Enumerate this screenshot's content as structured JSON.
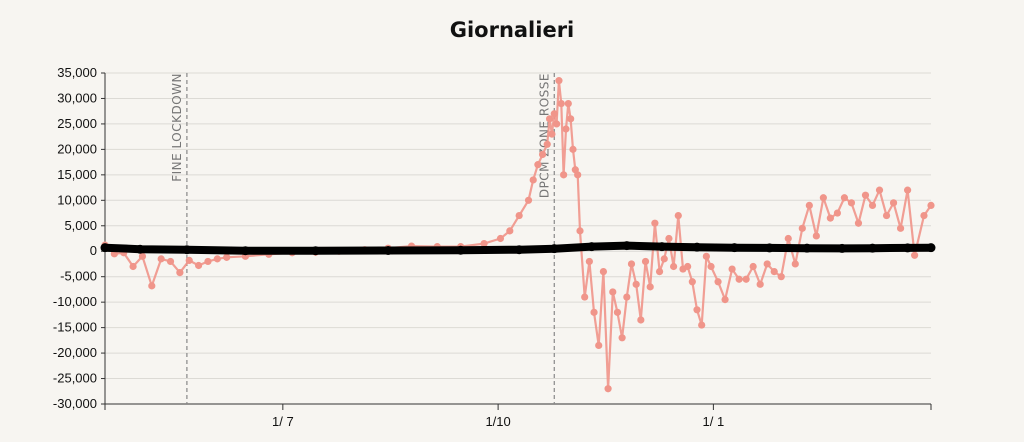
{
  "chart_data": {
    "type": "line",
    "title": "Giornalieri",
    "xlabel": "",
    "ylabel": "",
    "ylim": [
      -30000,
      35000
    ],
    "yticks": [
      35000,
      30000,
      25000,
      20000,
      15000,
      10000,
      5000,
      0,
      -5000,
      -10000,
      -15000,
      -20000,
      -25000,
      -30000
    ],
    "ytick_labels": [
      "35,000",
      "30,000",
      "25,000",
      "20,000",
      "15,000",
      "10,000",
      "5,000",
      "0",
      "-5,000",
      "-10,000",
      "-15,000",
      "-20,000",
      "-25,000",
      "-30,000"
    ],
    "xlim": [
      "2020-04-16",
      "2021-04-04"
    ],
    "xticks": [
      "2020-07-01",
      "2020-10-01",
      "2021-01-01"
    ],
    "xtick_labels": [
      "1/ 7",
      "1/10",
      "1/ 1"
    ],
    "grid": true,
    "annotations": [
      {
        "date": "2020-05-21",
        "label": "FINE LOCKDOWN"
      },
      {
        "date": "2020-10-25",
        "label": "DPCM ZONE ROSSE"
      }
    ],
    "series": [
      {
        "color": "#f0958a",
        "x": [
          "2020-04-16",
          "2020-04-20",
          "2020-04-24",
          "2020-04-28",
          "2020-05-02",
          "2020-05-06",
          "2020-05-10",
          "2020-05-14",
          "2020-05-18",
          "2020-05-22",
          "2020-05-26",
          "2020-05-30",
          "2020-06-03",
          "2020-06-07",
          "2020-06-15",
          "2020-06-25",
          "2020-07-05",
          "2020-07-15",
          "2020-07-25",
          "2020-08-05",
          "2020-08-15",
          "2020-08-25",
          "2020-09-05",
          "2020-09-15",
          "2020-09-25",
          "2020-10-02",
          "2020-10-06",
          "2020-10-10",
          "2020-10-14",
          "2020-10-16",
          "2020-10-18",
          "2020-10-20",
          "2020-10-22",
          "2020-10-23",
          "2020-10-24",
          "2020-10-25",
          "2020-10-26",
          "2020-10-27",
          "2020-10-28",
          "2020-10-29",
          "2020-10-30",
          "2020-10-31",
          "2020-11-01",
          "2020-11-02",
          "2020-11-03",
          "2020-11-04",
          "2020-11-05",
          "2020-11-07",
          "2020-11-09",
          "2020-11-11",
          "2020-11-13",
          "2020-11-15",
          "2020-11-17",
          "2020-11-19",
          "2020-11-21",
          "2020-11-23",
          "2020-11-25",
          "2020-11-27",
          "2020-11-29",
          "2020-12-01",
          "2020-12-03",
          "2020-12-05",
          "2020-12-07",
          "2020-12-09",
          "2020-12-11",
          "2020-12-13",
          "2020-12-15",
          "2020-12-17",
          "2020-12-19",
          "2020-12-21",
          "2020-12-23",
          "2020-12-25",
          "2020-12-27",
          "2020-12-29",
          "2020-12-31",
          "2021-01-03",
          "2021-01-06",
          "2021-01-09",
          "2021-01-12",
          "2021-01-15",
          "2021-01-18",
          "2021-01-21",
          "2021-01-24",
          "2021-01-27",
          "2021-01-30",
          "2021-02-02",
          "2021-02-05",
          "2021-02-08",
          "2021-02-11",
          "2021-02-14",
          "2021-02-17",
          "2021-02-20",
          "2021-02-23",
          "2021-02-26",
          "2021-03-01",
          "2021-03-04",
          "2021-03-07",
          "2021-03-10",
          "2021-03-13",
          "2021-03-16",
          "2021-03-19",
          "2021-03-22",
          "2021-03-25",
          "2021-03-28",
          "2021-04-01",
          "2021-04-04"
        ],
        "values": [
          1200,
          -500,
          -300,
          -3000,
          -1000,
          -6800,
          -1500,
          -2000,
          -4200,
          -1800,
          -2800,
          -2000,
          -1500,
          -1200,
          -1000,
          -600,
          -300,
          -200,
          0,
          300,
          600,
          1000,
          900,
          900,
          1500,
          2500,
          4000,
          7000,
          10000,
          14000,
          17000,
          19000,
          21000,
          26000,
          23000,
          27000,
          25000,
          33500,
          29000,
          15000,
          24000,
          29000,
          26000,
          20000,
          16000,
          15000,
          4000,
          -9000,
          -2000,
          -12000,
          -18500,
          -4000,
          -27000,
          -8000,
          -12000,
          -17000,
          -9000,
          -2500,
          -6500,
          -13500,
          -2000,
          -7000,
          5500,
          -4000,
          -1500,
          2500,
          -3000,
          7000,
          -3500,
          -3000,
          -6000,
          -11500,
          -14500,
          -1000,
          -3000,
          -6000,
          -9500,
          -3500,
          -5500,
          -5500,
          -3000,
          -6500,
          -2500,
          -4000,
          -5000,
          2500,
          -2500,
          4500,
          9000,
          3000,
          10500,
          6500,
          7500,
          10500,
          9500,
          5500,
          11000,
          9000,
          12000,
          7000,
          9500,
          4500,
          12000,
          -800,
          7000,
          9000
        ]
      },
      {
        "color": "#000000",
        "x": [
          "2020-04-16",
          "2020-05-01",
          "2020-05-21",
          "2020-06-15",
          "2020-07-15",
          "2020-08-15",
          "2020-09-15",
          "2020-10-10",
          "2020-10-25",
          "2020-11-10",
          "2020-11-25",
          "2020-12-10",
          "2020-12-25",
          "2021-01-10",
          "2021-01-25",
          "2021-02-10",
          "2021-02-25",
          "2021-03-10",
          "2021-03-25",
          "2021-04-04"
        ],
        "values": [
          700,
          400,
          300,
          100,
          100,
          150,
          200,
          300,
          500,
          900,
          1100,
          900,
          800,
          700,
          650,
          600,
          550,
          600,
          650,
          700
        ]
      }
    ]
  }
}
